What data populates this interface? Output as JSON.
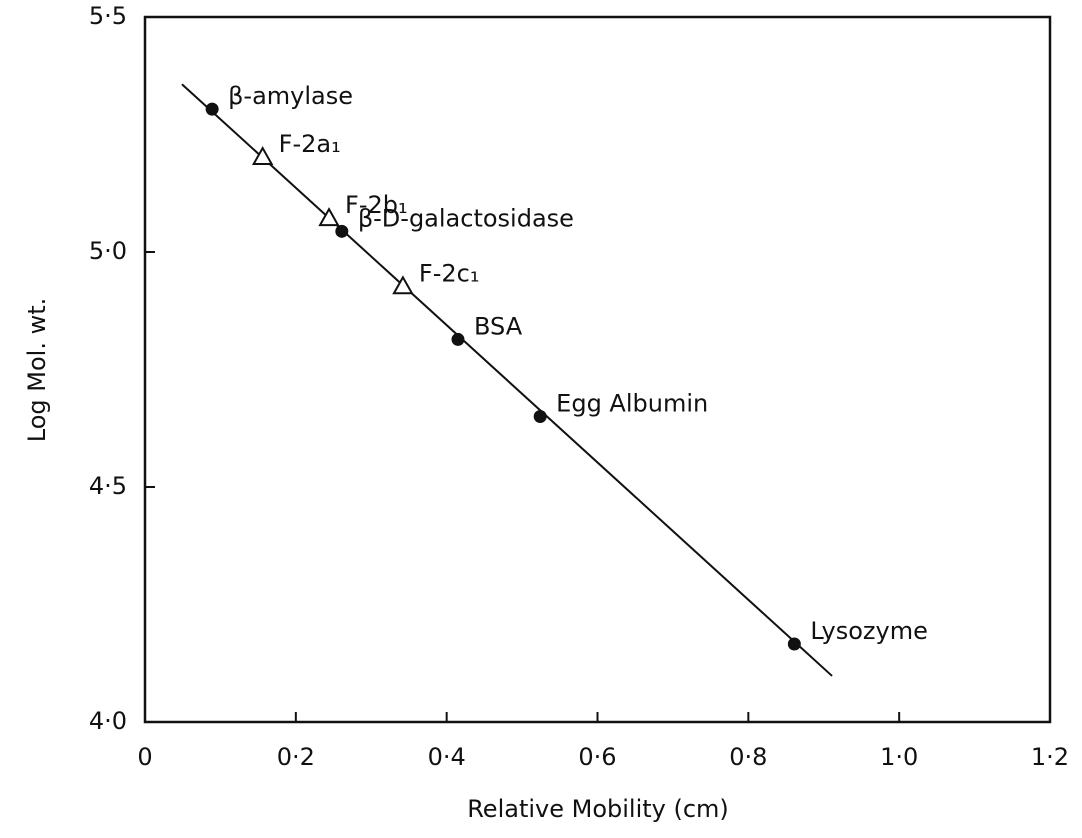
{
  "chart_data": {
    "type": "scatter",
    "xlabel": "Relative Mobility (cm)",
    "ylabel": "Log Mol. wt.",
    "xlim": [
      0,
      1.2
    ],
    "xticks": [
      0,
      {
        "value": 0.2,
        "label": "0·2"
      },
      {
        "value": 0.4,
        "label": "0·4"
      },
      {
        "value": 0.6,
        "label": "0·6"
      },
      {
        "value": 0.8,
        "label": "0·8"
      },
      {
        "value": 1.0,
        "label": "1·0"
      },
      {
        "value": 1.2,
        "label": "1·2"
      }
    ],
    "ylim": [
      4.0,
      5.5
    ],
    "yticks": [
      {
        "value": 4.0,
        "label": "4·0"
      },
      {
        "value": 4.5,
        "label": "4·5"
      },
      {
        "value": 5.0,
        "label": "5·0"
      },
      {
        "value": 5.5,
        "label": "5·5"
      }
    ],
    "color": "#111111",
    "series": [
      {
        "marker": "circle",
        "labels": [
          "β-amylase",
          "β-D-galactosidase",
          "BSA",
          "Egg Albumin",
          "Lysozyme"
        ],
        "x": [
          0.089,
          0.261,
          0.415,
          0.524,
          0.861
        ],
        "values": [
          5.304,
          5.044,
          4.814,
          4.65,
          4.166
        ]
      },
      {
        "marker": "triangle",
        "labels": [
          "F-2a₁",
          "F-2b₁",
          "F-2c₁"
        ],
        "x": [
          0.156,
          0.244,
          0.342
        ],
        "values": [
          5.202,
          5.072,
          4.927
        ]
      }
    ],
    "fit_line": {
      "x": [
        0.049,
        0.911
      ],
      "values": [
        5.357,
        4.098
      ]
    }
  }
}
